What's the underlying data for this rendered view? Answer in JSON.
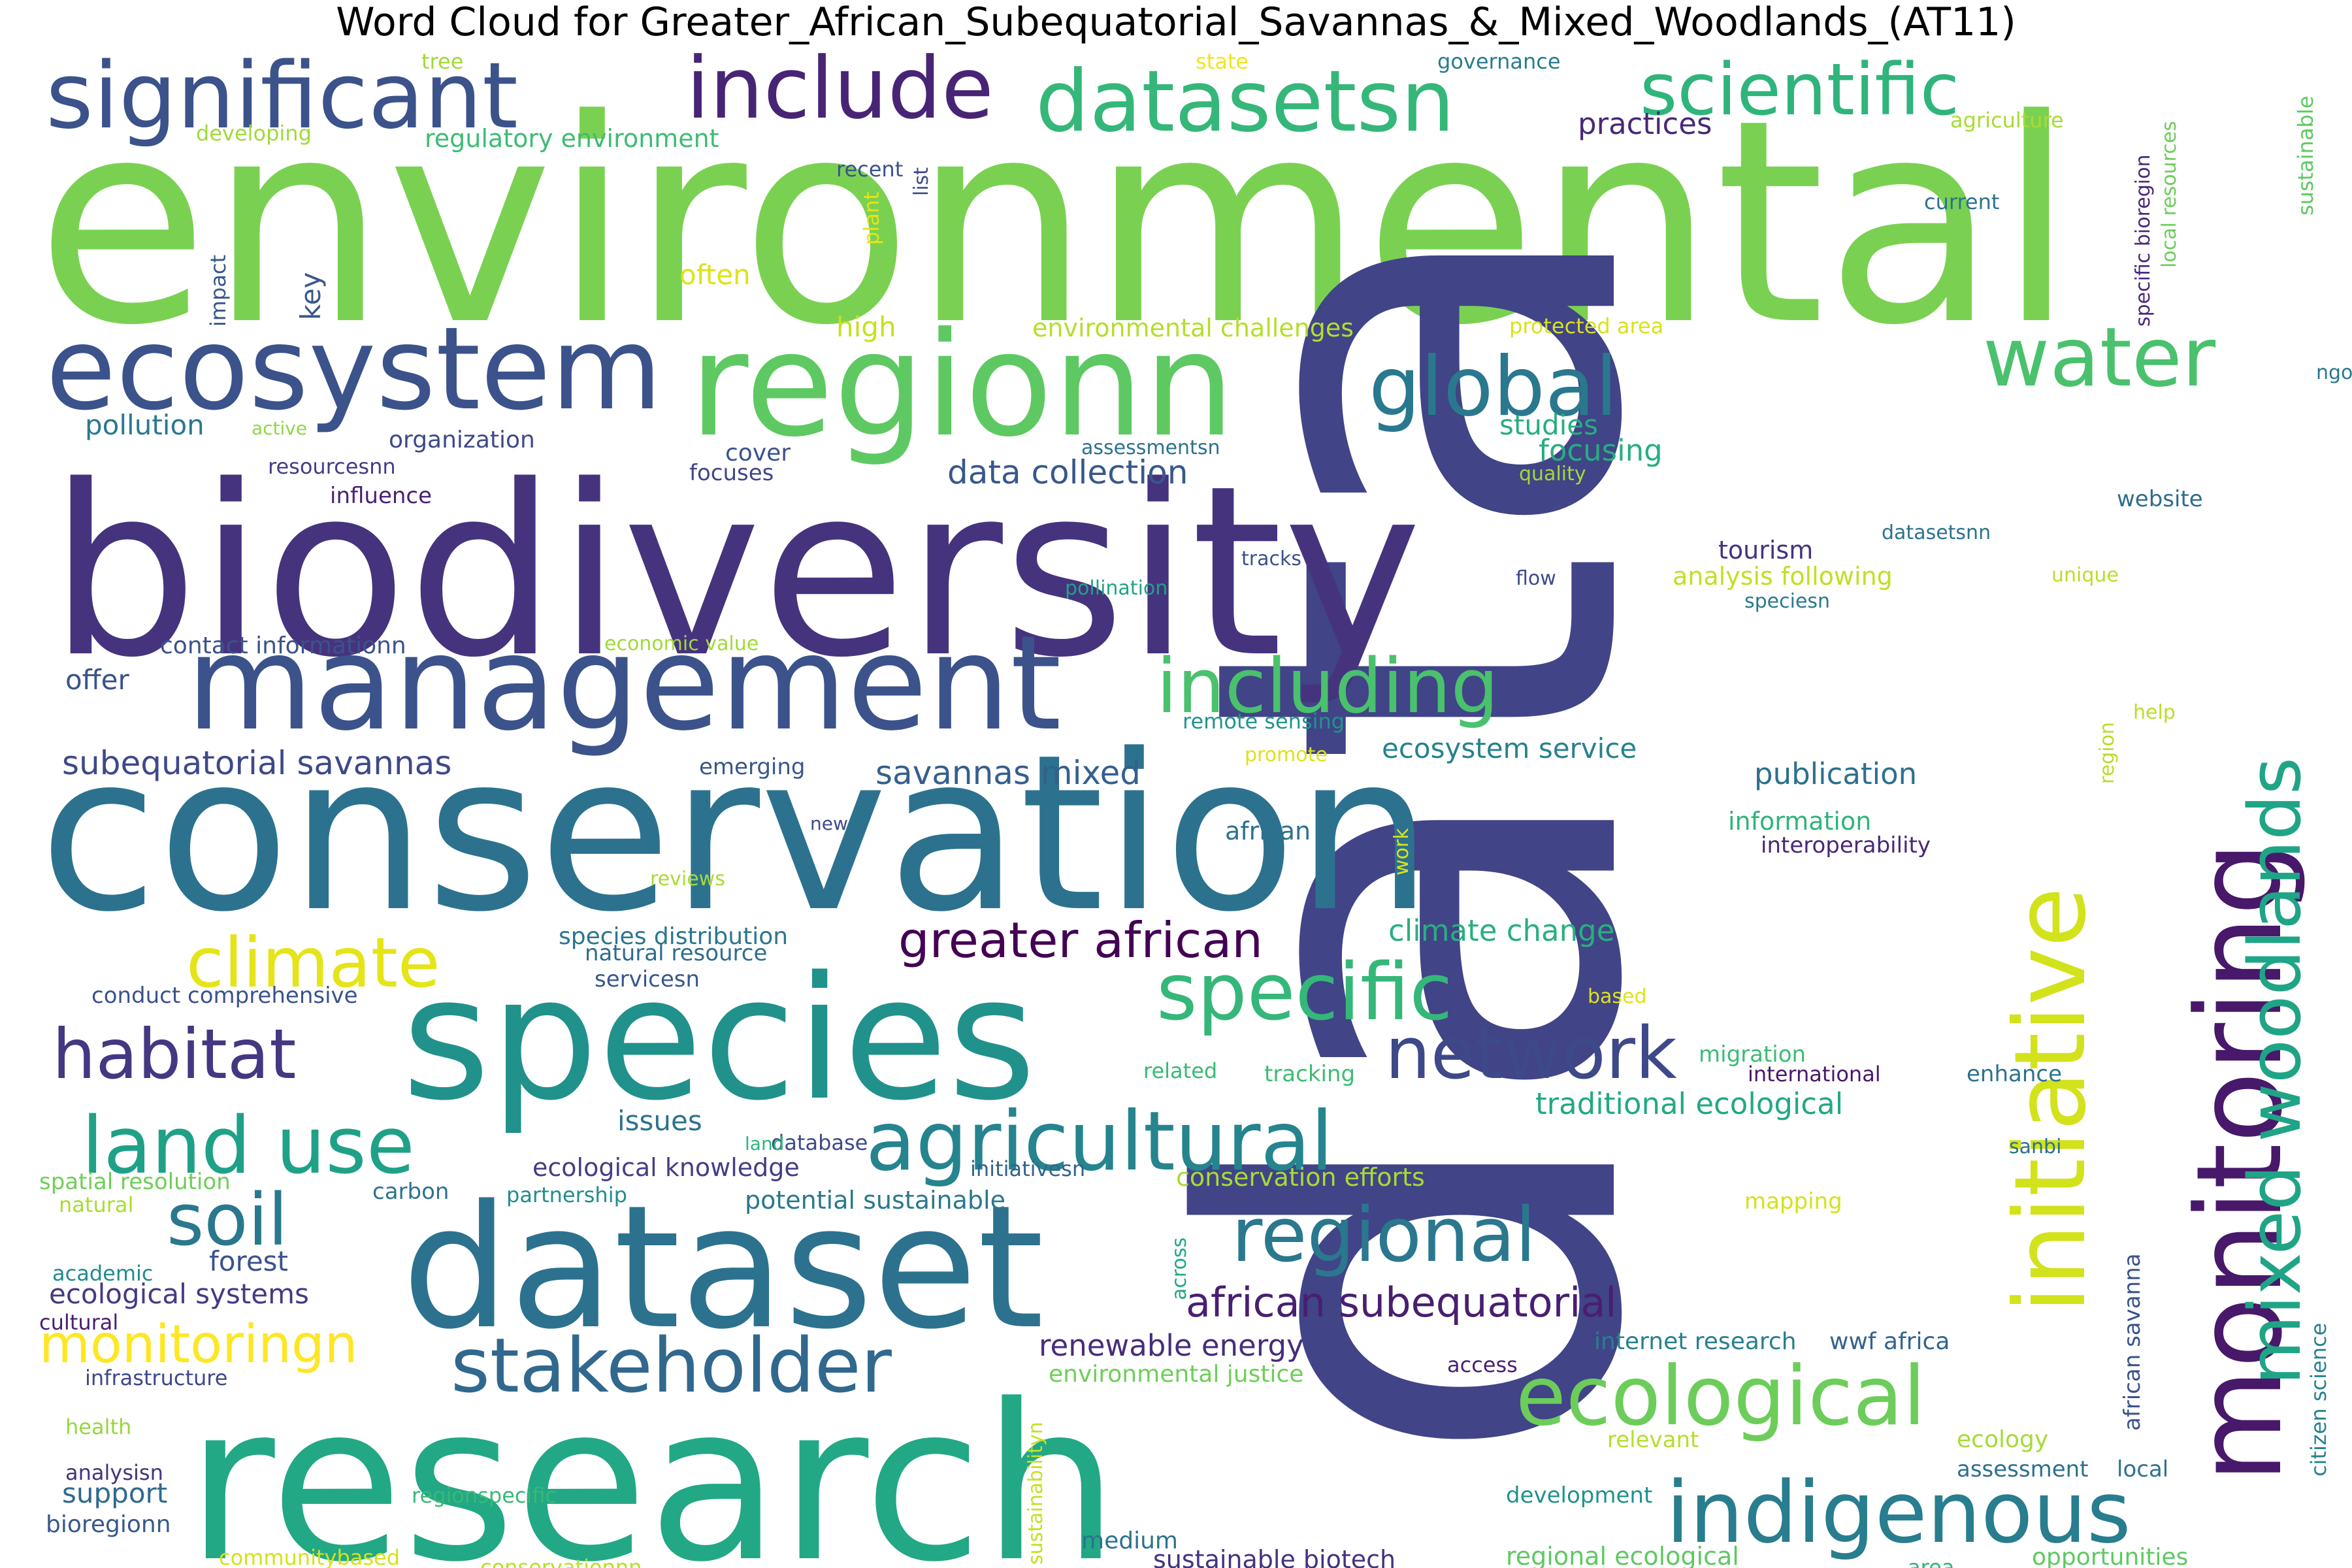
{
  "title": "Word Cloud for Greater_African_Subequatorial_Savannas_&_Mixed_Woodlands_(AT11)",
  "words": [
    {
      "text": "environmental",
      "color": "#7ad151"
    },
    {
      "text": "data",
      "color": "#414487"
    },
    {
      "text": "biodiversity",
      "color": "#46337e"
    },
    {
      "text": "conservation",
      "color": "#2c728e"
    },
    {
      "text": "research",
      "color": "#22a884"
    },
    {
      "text": "species",
      "color": "#21918c"
    },
    {
      "text": "dataset",
      "color": "#2c728e"
    },
    {
      "text": "management",
      "color": "#3b528b"
    },
    {
      "text": "monitoring",
      "color": "#48186a"
    },
    {
      "text": "regionn",
      "color": "#5ec962"
    },
    {
      "text": "ecosystem",
      "color": "#3b528b"
    },
    {
      "text": "initiative",
      "color": "#d2e21b"
    },
    {
      "text": "significant",
      "color": "#3b528b"
    },
    {
      "text": "include",
      "color": "#482475"
    },
    {
      "text": "datasetsn",
      "color": "#35b779"
    },
    {
      "text": "scientific",
      "color": "#2fb47c"
    },
    {
      "text": "water",
      "color": "#4ac16d"
    },
    {
      "text": "global",
      "color": "#2a788e"
    },
    {
      "text": "including",
      "color": "#4ac16d"
    },
    {
      "text": "mixed woodlands",
      "color": "#20a486"
    },
    {
      "text": "climate",
      "color": "#e5e419"
    },
    {
      "text": "specific",
      "color": "#35b779"
    },
    {
      "text": "habitat",
      "color": "#453781"
    },
    {
      "text": "agricultural",
      "color": "#25848e"
    },
    {
      "text": "network",
      "color": "#3e4989"
    },
    {
      "text": "land use",
      "color": "#1fa187"
    },
    {
      "text": "soil",
      "color": "#2a788e"
    },
    {
      "text": "regional",
      "color": "#2a788e"
    },
    {
      "text": "stakeholder",
      "color": "#31688e"
    },
    {
      "text": "ecological",
      "color": "#6ccd5a"
    },
    {
      "text": "indigenous",
      "color": "#287d8e"
    },
    {
      "text": "greater african",
      "color": "#440154"
    },
    {
      "text": "monitoringn",
      "color": "#fde725"
    },
    {
      "text": "african subequatorial",
      "color": "#481f70"
    },
    {
      "text": "subequatorial savannas",
      "color": "#3e4989"
    },
    {
      "text": "savannas mixed",
      "color": "#355f8d"
    },
    {
      "text": "data collection",
      "color": "#38588c"
    },
    {
      "text": "climate change",
      "color": "#29af7f"
    },
    {
      "text": "traditional ecological",
      "color": "#22a884"
    },
    {
      "text": "ecosystem service",
      "color": "#26828e"
    },
    {
      "text": "publication",
      "color": "#2d708e"
    },
    {
      "text": "renewable energy",
      "color": "#472d7b"
    },
    {
      "text": "environmental challenges",
      "color": "#b5de2b"
    },
    {
      "text": "regulatory environment",
      "color": "#3dbc74"
    },
    {
      "text": "practices",
      "color": "#482878"
    },
    {
      "text": "pollution",
      "color": "#2a788e"
    },
    {
      "text": "focusing",
      "color": "#27ad81"
    },
    {
      "text": "studies",
      "color": "#27ad81"
    },
    {
      "text": "tourism",
      "color": "#46337e"
    },
    {
      "text": "analysis following",
      "color": "#c2df23"
    },
    {
      "text": "ecological systems",
      "color": "#443a83"
    },
    {
      "text": "ecological knowledge",
      "color": "#433e85"
    },
    {
      "text": "potential sustainable",
      "color": "#2a788e"
    },
    {
      "text": "issues",
      "color": "#2c728e"
    },
    {
      "text": "forest",
      "color": "#3b528b"
    },
    {
      "text": "support",
      "color": "#30698e"
    },
    {
      "text": "internet research",
      "color": "#277f8e"
    },
    {
      "text": "wwf africa",
      "color": "#33638d"
    },
    {
      "text": "environmental justice",
      "color": "#6ece58"
    },
    {
      "text": "conservation efforts",
      "color": "#a8db34"
    },
    {
      "text": "sustainable biotech",
      "color": "#46327e"
    },
    {
      "text": "regional ecological",
      "color": "#5ec962"
    },
    {
      "text": "medium",
      "color": "#2c728e"
    },
    {
      "text": "contact informationn",
      "color": "#3b528b"
    },
    {
      "text": "offer",
      "color": "#3b528b"
    },
    {
      "text": "key",
      "color": "#39568c"
    },
    {
      "text": "often",
      "color": "#dde318"
    },
    {
      "text": "high",
      "color": "#c8e020"
    },
    {
      "text": "organization",
      "color": "#3e4989"
    },
    {
      "text": "cover",
      "color": "#3b528b"
    },
    {
      "text": "focuses",
      "color": "#404688"
    },
    {
      "text": "influence",
      "color": "#482173"
    },
    {
      "text": "resourcesnn",
      "color": "#433e85"
    },
    {
      "text": "species distribution",
      "color": "#2a768e"
    },
    {
      "text": "natural resource",
      "color": "#2f6c8e"
    },
    {
      "text": "servicesn",
      "color": "#38588c"
    },
    {
      "text": "conduct comprehensive",
      "color": "#3b528b"
    },
    {
      "text": "emerging",
      "color": "#39568c"
    },
    {
      "text": "information",
      "color": "#2fb47c"
    },
    {
      "text": "interoperability",
      "color": "#482878"
    },
    {
      "text": "african",
      "color": "#2d708e"
    },
    {
      "text": "database",
      "color": "#3e4989"
    },
    {
      "text": "initiativesn",
      "color": "#33638d"
    },
    {
      "text": "carbon",
      "color": "#2c728e"
    },
    {
      "text": "partnership",
      "color": "#228c8d"
    },
    {
      "text": "spatial resolution",
      "color": "#6ece58"
    },
    {
      "text": "natural",
      "color": "#aadc32"
    },
    {
      "text": "academic",
      "color": "#228c8d"
    },
    {
      "text": "cultural",
      "color": "#481f70"
    },
    {
      "text": "infrastructure",
      "color": "#3f4788"
    },
    {
      "text": "health",
      "color": "#95d840"
    },
    {
      "text": "analysisn",
      "color": "#46337e"
    },
    {
      "text": "bioregionn",
      "color": "#38588c"
    },
    {
      "text": "communitybased",
      "color": "#d5e21a"
    },
    {
      "text": "conservationnn",
      "color": "#b8de29"
    },
    {
      "text": "regionspecific",
      "color": "#38b977"
    },
    {
      "text": "development",
      "color": "#20928c"
    },
    {
      "text": "relevant",
      "color": "#b5de2b"
    },
    {
      "text": "ecology",
      "color": "#a5db36"
    },
    {
      "text": "assessment",
      "color": "#2d708e"
    },
    {
      "text": "local",
      "color": "#2c728e"
    },
    {
      "text": "area",
      "color": "#2fb47c"
    },
    {
      "text": "opportunities",
      "color": "#5ec962"
    },
    {
      "text": "access",
      "color": "#482173"
    },
    {
      "text": "mapping",
      "color": "#d2e21b"
    },
    {
      "text": "related",
      "color": "#38b977"
    },
    {
      "text": "tracking",
      "color": "#3dbc74"
    },
    {
      "text": "migration",
      "color": "#3dbc74"
    },
    {
      "text": "international",
      "color": "#48186a"
    },
    {
      "text": "enhance",
      "color": "#2c728e"
    },
    {
      "text": "sanbi",
      "color": "#2c728e"
    },
    {
      "text": "tree",
      "color": "#a0da39"
    },
    {
      "text": "developing",
      "color": "#a0da39"
    },
    {
      "text": "recent",
      "color": "#3b528b"
    },
    {
      "text": "list",
      "color": "#3e4989"
    },
    {
      "text": "plant",
      "color": "#e5e419"
    },
    {
      "text": "state",
      "color": "#f1e51d"
    },
    {
      "text": "governance",
      "color": "#287d8e"
    },
    {
      "text": "agriculture",
      "color": "#a8db34"
    },
    {
      "text": "current",
      "color": "#2c728e"
    },
    {
      "text": "protected area",
      "color": "#d8e219"
    },
    {
      "text": "impact",
      "color": "#39568c"
    },
    {
      "text": "active",
      "color": "#8fd744"
    },
    {
      "text": "assessmentsn",
      "color": "#2c728e"
    },
    {
      "text": "quality",
      "color": "#a2da37"
    },
    {
      "text": "website",
      "color": "#2f6c8e"
    },
    {
      "text": "datasetsnn",
      "color": "#2c728e"
    },
    {
      "text": "unique",
      "color": "#bade28"
    },
    {
      "text": "tracks",
      "color": "#3b528b"
    },
    {
      "text": "flow",
      "color": "#3e4989"
    },
    {
      "text": "pollination",
      "color": "#20a386"
    },
    {
      "text": "speciesn",
      "color": "#2a788e"
    },
    {
      "text": "economic value",
      "color": "#a0da39"
    },
    {
      "text": "remote sensing",
      "color": "#1f958b"
    },
    {
      "text": "promote",
      "color": "#dde318"
    },
    {
      "text": "new",
      "color": "#3e4989"
    },
    {
      "text": "reviews",
      "color": "#a8db34"
    },
    {
      "text": "work",
      "color": "#dde318"
    },
    {
      "text": "help",
      "color": "#bade28"
    },
    {
      "text": "region",
      "color": "#bade28"
    },
    {
      "text": "based",
      "color": "#dde318"
    },
    {
      "text": "land",
      "color": "#2fb47c"
    },
    {
      "text": "across",
      "color": "#22a884"
    },
    {
      "text": "sustainabilityn",
      "color": "#c5e021"
    },
    {
      "text": "african savanna",
      "color": "#3b528b"
    },
    {
      "text": "citizen science",
      "color": "#26828e"
    },
    {
      "text": "ngo",
      "color": "#2a788e"
    },
    {
      "text": "specific bioregion",
      "color": "#482878"
    },
    {
      "text": "local resources",
      "color": "#6ccd5a"
    },
    {
      "text": "sustainable",
      "color": "#5ec962"
    }
  ]
}
